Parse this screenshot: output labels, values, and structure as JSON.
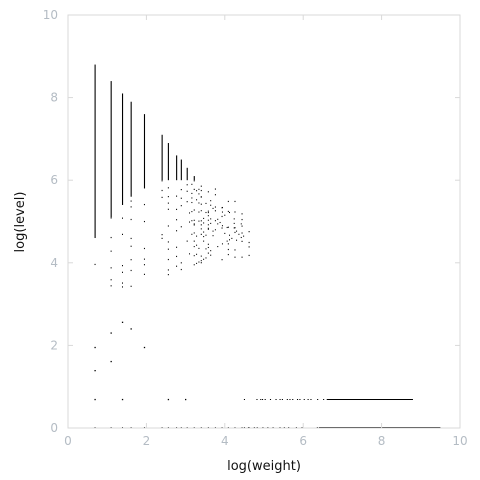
{
  "chart_data": {
    "type": "scatter",
    "xlabel": "log(weight)",
    "ylabel": "log(level)",
    "xlim": [
      0,
      10
    ],
    "ylim": [
      0,
      10
    ],
    "xticks": [
      "0",
      "2",
      "4",
      "6",
      "8",
      "10"
    ],
    "yticks": [
      "0",
      "2",
      "4",
      "6",
      "8",
      "10"
    ],
    "grid": false,
    "legend": "none",
    "color": "#000000",
    "columns": [
      {
        "x": 0.69,
        "ymin": 0.0,
        "ymax": 8.8,
        "solid_from": 4.6
      },
      {
        "x": 1.1,
        "ymin": 0.0,
        "ymax": 8.4,
        "solid_from": 5.1
      },
      {
        "x": 1.39,
        "ymin": 0.0,
        "ymax": 8.1,
        "solid_from": 5.4
      },
      {
        "x": 1.61,
        "ymin": 0.0,
        "ymax": 7.9,
        "solid_from": 5.6
      },
      {
        "x": 1.95,
        "ymin": 0.0,
        "ymax": 7.6,
        "solid_from": 5.8
      },
      {
        "x": 2.4,
        "ymin": 0.0,
        "ymax": 7.1,
        "solid_from": 6.0
      },
      {
        "x": 2.56,
        "ymin": 0.0,
        "ymax": 6.9,
        "solid_from": 6.0
      },
      {
        "x": 2.77,
        "ymin": 0.0,
        "ymax": 6.6,
        "solid_from": 6.0
      },
      {
        "x": 2.89,
        "ymin": 0.0,
        "ymax": 6.5,
        "solid_from": 6.0
      },
      {
        "x": 3.04,
        "ymin": 0.0,
        "ymax": 6.3,
        "solid_from": 6.0
      },
      {
        "x": 3.22,
        "ymin": 0.0,
        "ymax": 6.1,
        "solid_from": 6.0
      },
      {
        "x": 3.4,
        "ymin": 0.0,
        "ymax": 6.0,
        "solid_from": 6.0
      },
      {
        "x": 3.58,
        "ymin": 0.0,
        "ymax": 5.9,
        "solid_from": 5.9
      },
      {
        "x": 3.76,
        "ymin": 0.0,
        "ymax": 5.8,
        "solid_from": 5.8
      },
      {
        "x": 3.93,
        "ymin": 0.0,
        "ymax": 5.7,
        "solid_from": 5.7
      },
      {
        "x": 4.09,
        "ymin": 0.0,
        "ymax": 5.6,
        "solid_from": 5.6
      },
      {
        "x": 4.26,
        "ymin": 0.0,
        "ymax": 5.5,
        "solid_from": 5.5
      },
      {
        "x": 4.44,
        "ymin": 0.0,
        "ymax": 5.2,
        "solid_from": 5.2
      },
      {
        "x": 4.62,
        "ymin": 0.0,
        "ymax": 5.0,
        "solid_from": 5.0
      }
    ],
    "isolated_points": [
      {
        "x": 0.69,
        "y": 0.69
      },
      {
        "x": 0.69,
        "y": 1.39
      },
      {
        "x": 0.69,
        "y": 1.95
      },
      {
        "x": 1.1,
        "y": 1.61
      },
      {
        "x": 1.1,
        "y": 2.3
      },
      {
        "x": 1.39,
        "y": 0.69
      },
      {
        "x": 1.39,
        "y": 2.56
      },
      {
        "x": 1.61,
        "y": 2.4
      },
      {
        "x": 1.95,
        "y": 1.95
      },
      {
        "x": 2.56,
        "y": 0.69
      },
      {
        "x": 3.0,
        "y": 0.69
      }
    ],
    "horizontal_bands": [
      {
        "y": 0.69,
        "xmin": 4.5,
        "xmax": 8.8,
        "dense_from": 6.6
      },
      {
        "y": 0.0,
        "xmin": 4.5,
        "xmax": 9.5,
        "dense_from": 6.4
      }
    ]
  }
}
